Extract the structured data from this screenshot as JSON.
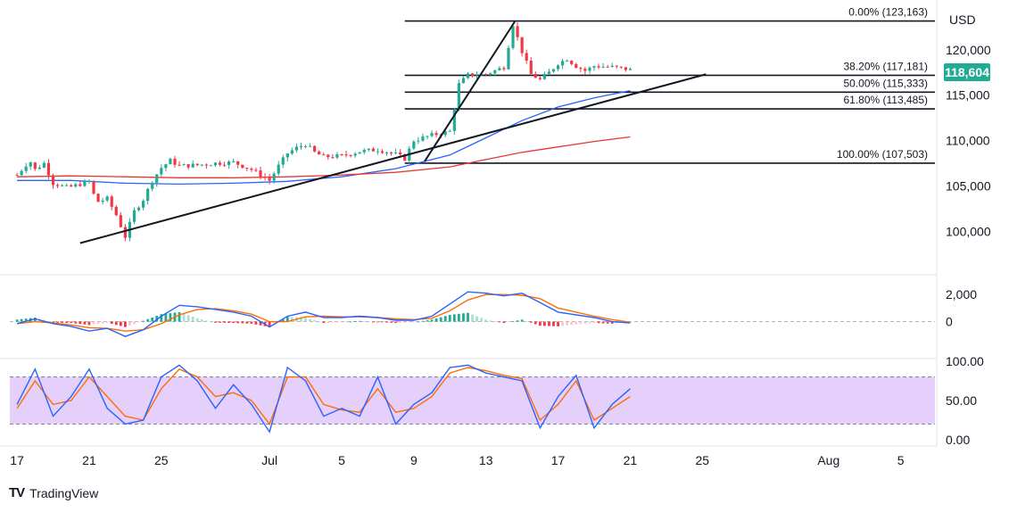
{
  "currency": "USD",
  "price_badge": {
    "text": "118,604",
    "color": "#22ab94"
  },
  "brand": {
    "logo": "TV",
    "name": "TradingView"
  },
  "colors": {
    "up": "#22ab94",
    "down": "#f23645",
    "ma_fast": "#2962ff",
    "ma_slow": "#e53935",
    "macd": "#2962ff",
    "signal": "#ff6d00",
    "stoch_k": "#2962ff",
    "stoch_d": "#ff6d00",
    "stoch_band": "#e1c8fb",
    "trendline": "#131722",
    "fib": "#131722"
  },
  "chart_data": [
    {
      "type": "candlestick",
      "title": "",
      "ylim": [
        96000,
        124500
      ],
      "y_ticks": [
        "120,000",
        "115,000",
        "110,000",
        "105,000",
        "100,000"
      ],
      "y_tick_values": [
        120000,
        115000,
        110000,
        105000,
        100000
      ],
      "x_ticks": [
        "17",
        "21",
        "25",
        "Jul",
        "5",
        "9",
        "13",
        "17",
        "21",
        "25",
        "Aug",
        "5"
      ],
      "x_tick_days": [
        0,
        4,
        8,
        14,
        18,
        22,
        26,
        30,
        34,
        38,
        45,
        49
      ],
      "x_range_days": [
        -0.4,
        50.5
      ],
      "close_path": [
        [
          0,
          106200
        ],
        [
          0.7,
          107800
        ],
        [
          1.0,
          106800
        ],
        [
          1.5,
          107500
        ],
        [
          2.0,
          105300
        ],
        [
          2.8,
          104800
        ],
        [
          3.5,
          105200
        ],
        [
          4.0,
          105500
        ],
        [
          4.4,
          103200
        ],
        [
          5.0,
          103600
        ],
        [
          5.5,
          101800
        ],
        [
          6.0,
          99400
        ],
        [
          6.5,
          102200
        ],
        [
          7.0,
          103500
        ],
        [
          7.5,
          105600
        ],
        [
          8.0,
          107000
        ],
        [
          8.5,
          107800
        ],
        [
          9.0,
          107200
        ],
        [
          10,
          107300
        ],
        [
          11,
          107500
        ],
        [
          12,
          107600
        ],
        [
          13,
          106800
        ],
        [
          14,
          105600
        ],
        [
          14.5,
          107200
        ],
        [
          15,
          108600
        ],
        [
          15.5,
          109200
        ],
        [
          16,
          109600
        ],
        [
          16.5,
          108700
        ],
        [
          17,
          108200
        ],
        [
          18,
          108300
        ],
        [
          19,
          108800
        ],
        [
          20,
          109000
        ],
        [
          21,
          108500
        ],
        [
          21.5,
          108000
        ],
        [
          22,
          110000
        ],
        [
          23,
          110600
        ],
        [
          24,
          111000
        ],
        [
          24.5,
          116200
        ],
        [
          25,
          117200
        ],
        [
          26,
          117300
        ],
        [
          27,
          118100
        ],
        [
          27.5,
          122800
        ],
        [
          28,
          119800
        ],
        [
          28.5,
          117300
        ],
        [
          29,
          116700
        ],
        [
          29.5,
          117500
        ],
        [
          30,
          118500
        ],
        [
          30.5,
          119000
        ],
        [
          31,
          118200
        ],
        [
          31.5,
          117700
        ],
        [
          32,
          118200
        ],
        [
          33,
          118100
        ],
        [
          34,
          117800
        ],
        [
          34.2,
          118604
        ]
      ],
      "moving_averages": [
        {
          "points": [
            [
              0,
              105600
            ],
            [
              3,
              105600
            ],
            [
              6,
              105300
            ],
            [
              9,
              105200
            ],
            [
              12,
              105300
            ],
            [
              15,
              105500
            ],
            [
              18,
              106000
            ],
            [
              21,
              106900
            ],
            [
              24,
              108400
            ],
            [
              26,
              110300
            ],
            [
              28,
              112200
            ],
            [
              30,
              113700
            ],
            [
              32,
              114700
            ],
            [
              34,
              115500
            ]
          ]
        },
        {
          "points": [
            [
              0,
              106000
            ],
            [
              3,
              106100
            ],
            [
              6,
              106000
            ],
            [
              9,
              105900
            ],
            [
              12,
              105900
            ],
            [
              15,
              106000
            ],
            [
              18,
              106200
            ],
            [
              21,
              106500
            ],
            [
              24,
              107100
            ],
            [
              26,
              107900
            ],
            [
              28,
              108700
            ],
            [
              30,
              109300
            ],
            [
              32,
              109900
            ],
            [
              34,
              110400
            ]
          ]
        }
      ],
      "trendlines": [
        {
          "points": [
            [
              3.5,
              98700
            ],
            [
              38.2,
              117300
            ]
          ]
        },
        {
          "points": [
            [
              22.6,
              107700
            ],
            [
              27.6,
              123100
            ]
          ]
        }
      ],
      "fibonacci": {
        "x_start_day": 21.5,
        "levels": [
          {
            "label": "0.00% (123,163)",
            "value": 123163
          },
          {
            "label": "38.20% (117,181)",
            "value": 117181
          },
          {
            "label": "50.00% (115,333)",
            "value": 115333
          },
          {
            "label": "61.80% (113,485)",
            "value": 113485
          },
          {
            "label": "100.00% (107,503)",
            "value": 107503
          }
        ]
      }
    },
    {
      "type": "macd",
      "ylim": [
        -2600,
        3200
      ],
      "y_ticks": [
        "2,000",
        "0"
      ],
      "y_tick_values": [
        2000,
        0
      ],
      "macd": [
        [
          0,
          -150
        ],
        [
          1,
          200
        ],
        [
          2,
          -150
        ],
        [
          3,
          -350
        ],
        [
          4,
          -700
        ],
        [
          5,
          -500
        ],
        [
          6,
          -1100
        ],
        [
          7,
          -600
        ],
        [
          8,
          400
        ],
        [
          9,
          1200
        ],
        [
          10,
          1100
        ],
        [
          11,
          900
        ],
        [
          12,
          700
        ],
        [
          13,
          400
        ],
        [
          14,
          -400
        ],
        [
          15,
          400
        ],
        [
          16,
          700
        ],
        [
          17,
          300
        ],
        [
          18,
          300
        ],
        [
          19,
          400
        ],
        [
          20,
          300
        ],
        [
          21,
          100
        ],
        [
          22,
          100
        ],
        [
          23,
          400
        ],
        [
          24,
          1300
        ],
        [
          25,
          2200
        ],
        [
          26,
          2100
        ],
        [
          27,
          1900
        ],
        [
          28,
          2100
        ],
        [
          29,
          1400
        ],
        [
          30,
          700
        ],
        [
          31,
          500
        ],
        [
          32,
          300
        ],
        [
          33,
          0
        ],
        [
          34,
          -100
        ]
      ],
      "signal": [
        [
          0,
          -150
        ],
        [
          1,
          0
        ],
        [
          2,
          -100
        ],
        [
          3,
          -250
        ],
        [
          4,
          -450
        ],
        [
          5,
          -500
        ],
        [
          6,
          -700
        ],
        [
          7,
          -600
        ],
        [
          8,
          -150
        ],
        [
          9,
          500
        ],
        [
          10,
          900
        ],
        [
          11,
          950
        ],
        [
          12,
          800
        ],
        [
          13,
          550
        ],
        [
          14,
          0
        ],
        [
          15,
          0
        ],
        [
          16,
          350
        ],
        [
          17,
          400
        ],
        [
          18,
          350
        ],
        [
          19,
          350
        ],
        [
          20,
          300
        ],
        [
          21,
          200
        ],
        [
          22,
          150
        ],
        [
          23,
          250
        ],
        [
          24,
          800
        ],
        [
          25,
          1600
        ],
        [
          26,
          2000
        ],
        [
          27,
          2000
        ],
        [
          28,
          1950
        ],
        [
          29,
          1700
        ],
        [
          30,
          1000
        ],
        [
          31,
          700
        ],
        [
          32,
          400
        ],
        [
          33,
          150
        ],
        [
          34,
          -50
        ]
      ],
      "histogram": [
        [
          0,
          150
        ],
        [
          1,
          300
        ],
        [
          2,
          -80
        ],
        [
          3,
          -100
        ],
        [
          4,
          -250
        ],
        [
          5,
          -80
        ],
        [
          6,
          -400
        ],
        [
          7,
          60
        ],
        [
          8,
          550
        ],
        [
          9,
          700
        ],
        [
          10,
          250
        ],
        [
          11,
          -80
        ],
        [
          12,
          -100
        ],
        [
          13,
          -150
        ],
        [
          14,
          -400
        ],
        [
          15,
          350
        ],
        [
          16,
          300
        ],
        [
          17,
          -100
        ],
        [
          18,
          -50
        ],
        [
          19,
          50
        ],
        [
          20,
          -30
        ],
        [
          21,
          -100
        ],
        [
          22,
          -50
        ],
        [
          23,
          150
        ],
        [
          24,
          500
        ],
        [
          25,
          650
        ],
        [
          26,
          150
        ],
        [
          27,
          -100
        ],
        [
          28,
          150
        ],
        [
          29,
          -300
        ],
        [
          30,
          -350
        ],
        [
          31,
          -200
        ],
        [
          32,
          -100
        ],
        [
          33,
          -150
        ],
        [
          34,
          -50
        ]
      ]
    },
    {
      "type": "stochastic",
      "ylim": [
        0,
        100
      ],
      "y_ticks": [
        "100.00",
        "50.00",
        "0.00"
      ],
      "y_tick_values": [
        100,
        50,
        0
      ],
      "band": [
        20,
        80
      ],
      "k": [
        [
          0,
          45
        ],
        [
          1,
          90
        ],
        [
          2,
          30
        ],
        [
          3,
          55
        ],
        [
          4,
          90
        ],
        [
          5,
          40
        ],
        [
          6,
          20
        ],
        [
          7,
          25
        ],
        [
          8,
          80
        ],
        [
          9,
          95
        ],
        [
          10,
          75
        ],
        [
          11,
          40
        ],
        [
          12,
          70
        ],
        [
          13,
          45
        ],
        [
          14,
          10
        ],
        [
          15,
          92
        ],
        [
          16,
          75
        ],
        [
          17,
          30
        ],
        [
          18,
          40
        ],
        [
          19,
          30
        ],
        [
          20,
          80
        ],
        [
          21,
          20
        ],
        [
          22,
          45
        ],
        [
          23,
          60
        ],
        [
          24,
          92
        ],
        [
          25,
          95
        ],
        [
          26,
          85
        ],
        [
          27,
          80
        ],
        [
          28,
          75
        ],
        [
          29,
          15
        ],
        [
          30,
          55
        ],
        [
          31,
          82
        ],
        [
          32,
          15
        ],
        [
          33,
          45
        ],
        [
          34,
          65
        ]
      ],
      "d": [
        [
          0,
          40
        ],
        [
          1,
          75
        ],
        [
          2,
          45
        ],
        [
          3,
          50
        ],
        [
          4,
          80
        ],
        [
          5,
          55
        ],
        [
          6,
          30
        ],
        [
          7,
          25
        ],
        [
          8,
          65
        ],
        [
          9,
          90
        ],
        [
          10,
          80
        ],
        [
          11,
          55
        ],
        [
          12,
          60
        ],
        [
          13,
          50
        ],
        [
          14,
          20
        ],
        [
          15,
          80
        ],
        [
          16,
          80
        ],
        [
          17,
          45
        ],
        [
          18,
          38
        ],
        [
          19,
          35
        ],
        [
          20,
          65
        ],
        [
          21,
          35
        ],
        [
          22,
          40
        ],
        [
          23,
          55
        ],
        [
          24,
          85
        ],
        [
          25,
          92
        ],
        [
          26,
          88
        ],
        [
          27,
          82
        ],
        [
          28,
          78
        ],
        [
          29,
          25
        ],
        [
          30,
          45
        ],
        [
          31,
          75
        ],
        [
          32,
          25
        ],
        [
          33,
          40
        ],
        [
          34,
          55
        ]
      ]
    }
  ]
}
